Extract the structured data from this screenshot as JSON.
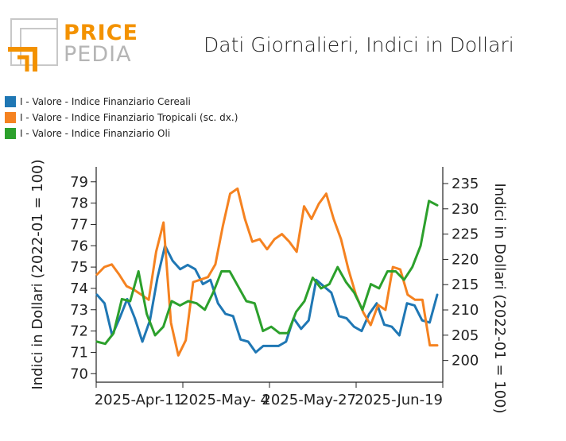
{
  "logo": {
    "word_top": "PRICE",
    "word_bottom": "PEDIA"
  },
  "chart_data": {
    "type": "line",
    "title": "Dati Giornalieri, Indici in Dollari",
    "ylabel_left": "Indici in Dollari (2022-01 = 100)",
    "ylabel_right": "Indici in Dollari (2022-01 = 100)",
    "x_tick_labels": [
      "2025-Apr-11",
      "2025-May- 4",
      "2025-May-27",
      "2025-Jun-19"
    ],
    "ylim_left": [
      69.6,
      79.7
    ],
    "ylim_right": [
      195.7,
      238.3
    ],
    "yticks_left": [
      70,
      71,
      72,
      73,
      74,
      75,
      76,
      77,
      78,
      79
    ],
    "yticks_right": [
      200,
      205,
      210,
      215,
      220,
      225,
      230,
      235
    ],
    "legend_position": "top-left",
    "grid": false,
    "series": [
      {
        "name": "I - Valore - Indice Finanziario Cereali",
        "color": "#1f77b4",
        "axis": "left",
        "values": [
          73.7,
          73.3,
          71.8,
          72.6,
          73.5,
          72.6,
          71.5,
          72.5,
          74.5,
          76.0,
          75.3,
          74.9,
          75.1,
          74.9,
          74.2,
          74.4,
          73.3,
          72.8,
          72.7,
          71.6,
          71.5,
          71.0,
          71.3,
          71.3,
          71.3,
          71.5,
          72.6,
          72.1,
          72.5,
          74.4,
          74.1,
          73.8,
          72.7,
          72.6,
          72.2,
          72.0,
          72.8,
          73.3,
          72.3,
          72.2,
          71.8,
          73.3,
          73.2,
          72.5,
          72.4,
          73.7
        ]
      },
      {
        "name": "I - Valore - Indice Finanziario Tropicali (sc. dx.)",
        "color": "#f58220",
        "axis": "right",
        "values": [
          217,
          218.5,
          219,
          217,
          214.7,
          214,
          213,
          212,
          221.5,
          227.3,
          207.5,
          201,
          204,
          215.5,
          216,
          216.5,
          219,
          226.5,
          233,
          234,
          228,
          223.5,
          224,
          222,
          224,
          225,
          223.5,
          221.5,
          230.5,
          228,
          231,
          233,
          228,
          224,
          218,
          213,
          209.5,
          207,
          211,
          210,
          218.5,
          218,
          213,
          212,
          212,
          203,
          203
        ]
      },
      {
        "name": "I - Valore - Indice Finanziario Oli",
        "color": "#2ca02c",
        "axis": "left",
        "values": [
          71.5,
          71.4,
          71.9,
          73.5,
          73.4,
          74.8,
          72.8,
          71.8,
          72.2,
          73.4,
          73.2,
          73.4,
          73.3,
          73.0,
          73.8,
          74.8,
          74.8,
          74.1,
          73.4,
          73.3,
          72.0,
          72.2,
          71.9,
          71.9,
          72.9,
          73.4,
          74.5,
          74.0,
          74.2,
          75.0,
          74.3,
          73.8,
          73.0,
          74.2,
          74.0,
          74.8,
          74.8,
          74.4,
          75.0,
          76.0,
          78.1,
          77.9
        ]
      }
    ]
  }
}
